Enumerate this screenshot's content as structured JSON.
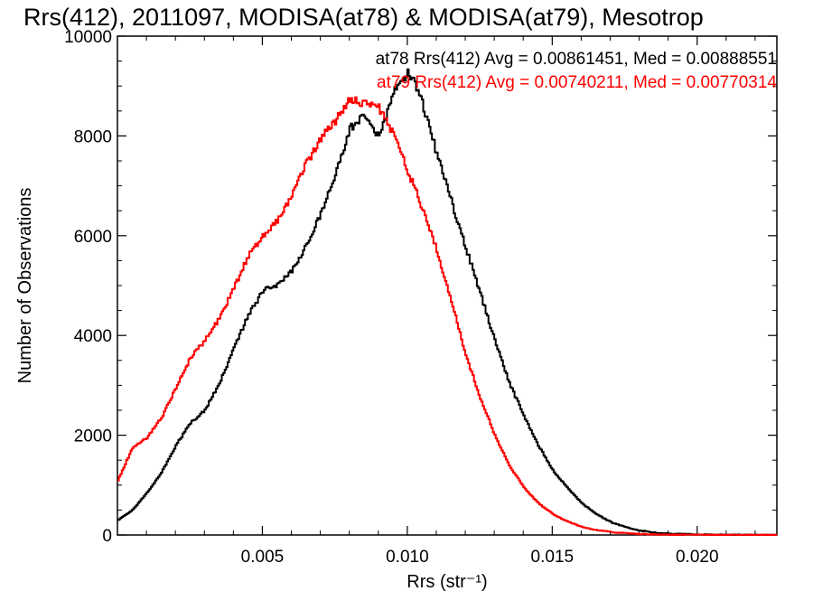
{
  "chart_data": {
    "type": "line",
    "step": true,
    "title": "Rrs(412), 2011097, MODISA(at78) & MODISA(at79), Mesotrop",
    "xlabel": "Rrs (str⁻¹)",
    "ylabel": "Number of Observations",
    "xlim": [
      0.0,
      0.02275
    ],
    "ylim": [
      0,
      10000
    ],
    "xticks": [
      0.005,
      0.01,
      0.015,
      0.02
    ],
    "xtick_labels": [
      "0.005",
      "0.010",
      "0.015",
      "0.020"
    ],
    "yticks": [
      0,
      2000,
      4000,
      6000,
      8000,
      10000
    ],
    "ytick_labels": [
      "0",
      "2000",
      "4000",
      "6000",
      "8000",
      "10000"
    ],
    "grid": false,
    "legend": "top-right",
    "series": [
      {
        "name": "at78",
        "color": "#000000",
        "stats_text": "at78 Rrs(412) Avg = 0.00861451, Med = 0.00888551",
        "x": [
          0.0,
          0.0005,
          0.001,
          0.0015,
          0.002,
          0.0025,
          0.003,
          0.0035,
          0.004,
          0.0045,
          0.005,
          0.0055,
          0.006,
          0.0065,
          0.007,
          0.0075,
          0.008,
          0.0085,
          0.009,
          0.0095,
          0.01,
          0.0102,
          0.0105,
          0.011,
          0.0115,
          0.012,
          0.0125,
          0.013,
          0.0135,
          0.014,
          0.0145,
          0.015,
          0.0155,
          0.016,
          0.0165,
          0.017,
          0.0175,
          0.018,
          0.0185,
          0.019,
          0.02,
          0.021,
          0.022,
          0.02275
        ],
        "y": [
          300,
          500,
          850,
          1250,
          1800,
          2250,
          2500,
          3050,
          3750,
          4400,
          4900,
          5000,
          5300,
          5800,
          6450,
          7200,
          8150,
          8400,
          7950,
          8850,
          9250,
          9150,
          8650,
          7650,
          6700,
          5750,
          4850,
          3900,
          3050,
          2400,
          1800,
          1300,
          950,
          640,
          420,
          260,
          160,
          90,
          50,
          30,
          10,
          5,
          2,
          0
        ]
      },
      {
        "name": "at79",
        "color": "#ff0000",
        "stats_text": "at79 Rrs(412) Avg = 0.00740211, Med = 0.00770314",
        "x": [
          0.0,
          0.0005,
          0.001,
          0.0015,
          0.002,
          0.0025,
          0.003,
          0.0035,
          0.004,
          0.0045,
          0.005,
          0.0055,
          0.006,
          0.0065,
          0.007,
          0.0075,
          0.008,
          0.0085,
          0.009,
          0.0095,
          0.01,
          0.0105,
          0.011,
          0.0115,
          0.012,
          0.0125,
          0.013,
          0.0135,
          0.014,
          0.0145,
          0.015,
          0.0155,
          0.016,
          0.0165,
          0.017,
          0.0175,
          0.018,
          0.0185,
          0.019,
          0.02,
          0.021,
          0.022,
          0.02275
        ],
        "y": [
          1100,
          1750,
          1950,
          2350,
          2950,
          3550,
          3900,
          4350,
          4950,
          5600,
          6000,
          6300,
          6800,
          7450,
          7950,
          8300,
          8750,
          8650,
          8550,
          8050,
          7300,
          6550,
          5700,
          4700,
          3600,
          2750,
          2000,
          1400,
          950,
          640,
          420,
          270,
          160,
          100,
          60,
          35,
          20,
          10,
          5,
          3,
          1,
          0,
          0
        ]
      }
    ]
  }
}
